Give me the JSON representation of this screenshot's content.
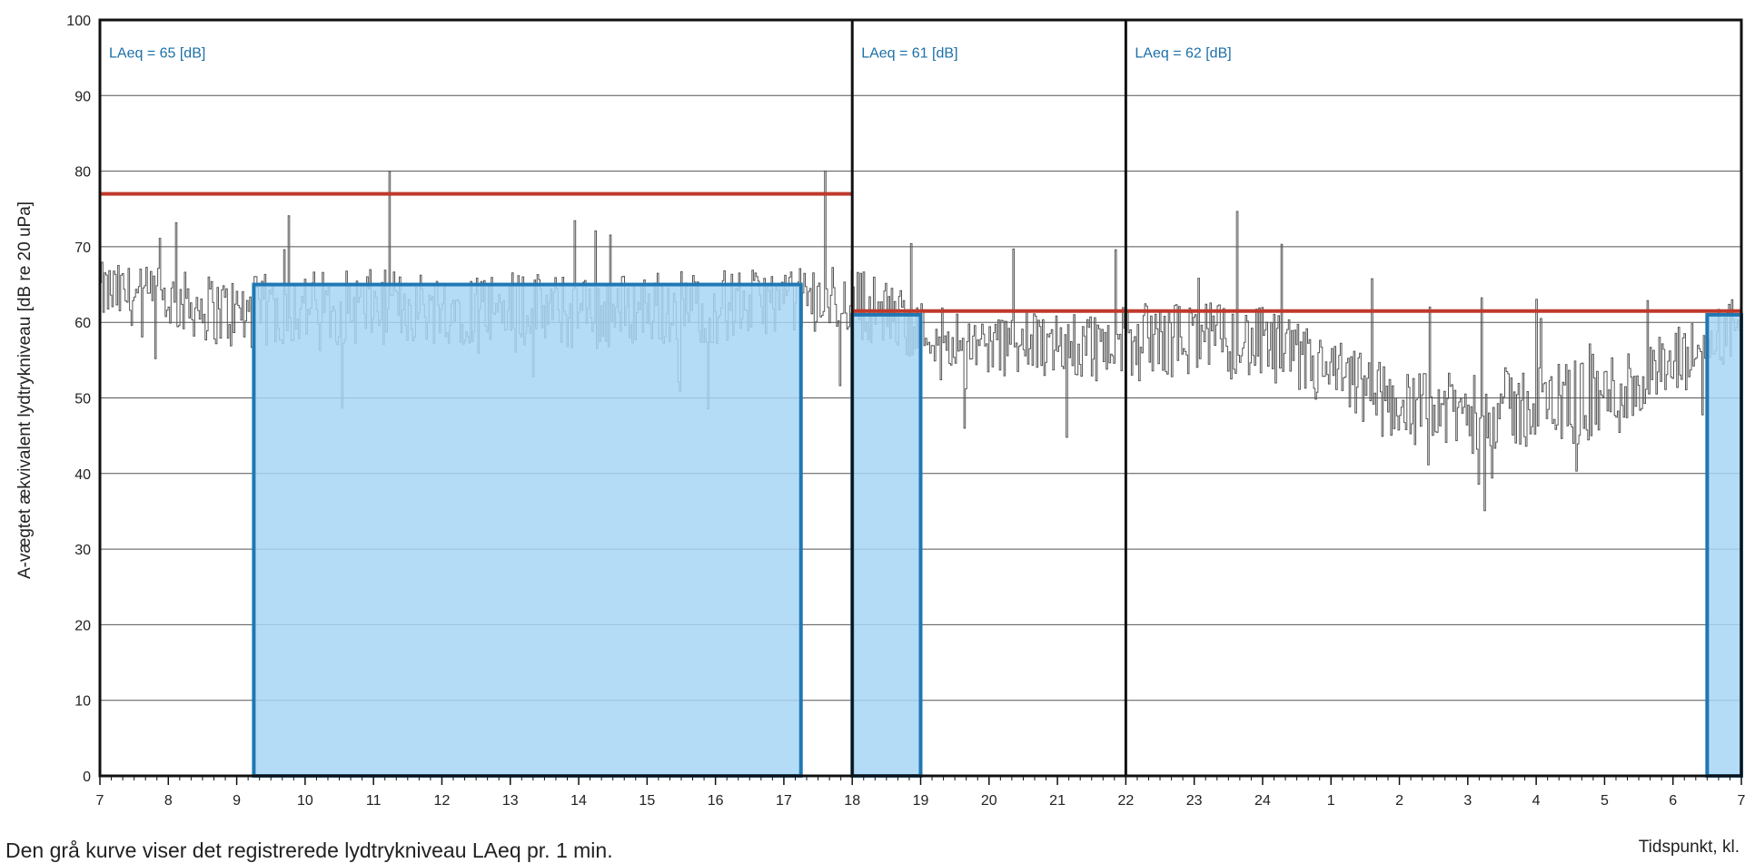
{
  "chart_data": {
    "type": "area",
    "ylabel": "A-vægtet ækvivalent lydtrykniveau [dB re 20 uPa]",
    "xlabel": "Tidspunkt, kl.",
    "ylim": [
      0,
      100
    ],
    "yticks": [
      0,
      10,
      20,
      30,
      40,
      50,
      60,
      70,
      80,
      90,
      100
    ],
    "x_range_hours": [
      7,
      31
    ],
    "x_tick_labels": [
      "7",
      "8",
      "9",
      "10",
      "11",
      "12",
      "13",
      "14",
      "15",
      "16",
      "17",
      "18",
      "19",
      "20",
      "21",
      "22",
      "23",
      "24",
      "1",
      "2",
      "3",
      "4",
      "5",
      "6",
      "7"
    ],
    "grid": true,
    "period_dividers_hour": [
      18,
      22
    ],
    "annotations": [
      {
        "text": "LAeq = 65 [dB]",
        "hour": 7
      },
      {
        "text": "LAeq = 61 [dB]",
        "hour": 18
      },
      {
        "text": "LAeq = 62 [dB]",
        "hour": 22
      }
    ],
    "limit_series": {
      "color": "#c0392b",
      "segments": [
        {
          "start": 7,
          "end": 18,
          "value": 77
        },
        {
          "start": 18,
          "end": 31,
          "value": 61.5
        }
      ]
    },
    "laeq_blocks": {
      "color": "#1f78b4",
      "fill": "#a7d6f4",
      "segments": [
        {
          "start": 9.25,
          "end": 17.25,
          "value": 65
        },
        {
          "start": 18,
          "end": 19,
          "value": 61
        },
        {
          "start": 30.5,
          "end": 31,
          "value": 61
        }
      ]
    },
    "minute_series": {
      "name": "LAeq pr. 1 min",
      "color": "#555555",
      "note": "envelope of the grey 1-minute curve, hour -> approx. mean dB and spread",
      "hours": [
        7,
        8,
        9,
        10,
        11,
        12,
        13,
        14,
        15,
        16,
        17,
        18,
        19,
        20,
        21,
        22,
        23,
        24,
        25,
        26,
        27,
        28,
        29,
        30,
        31
      ],
      "mean_db": [
        64,
        63,
        61,
        62,
        62,
        62,
        62,
        61,
        62,
        62,
        63,
        63,
        59,
        57,
        57,
        57,
        58,
        57,
        53,
        49,
        48,
        49,
        50,
        54,
        60
      ],
      "spread": [
        4,
        4,
        5,
        5,
        5,
        5,
        5,
        5,
        5,
        5,
        4,
        5,
        4,
        4,
        5,
        5,
        5,
        5,
        5,
        5,
        5,
        6,
        6,
        5,
        4
      ]
    }
  },
  "caption": "Den grå kurve viser det registrerede lydtrykniveau LAeq pr. 1 min."
}
